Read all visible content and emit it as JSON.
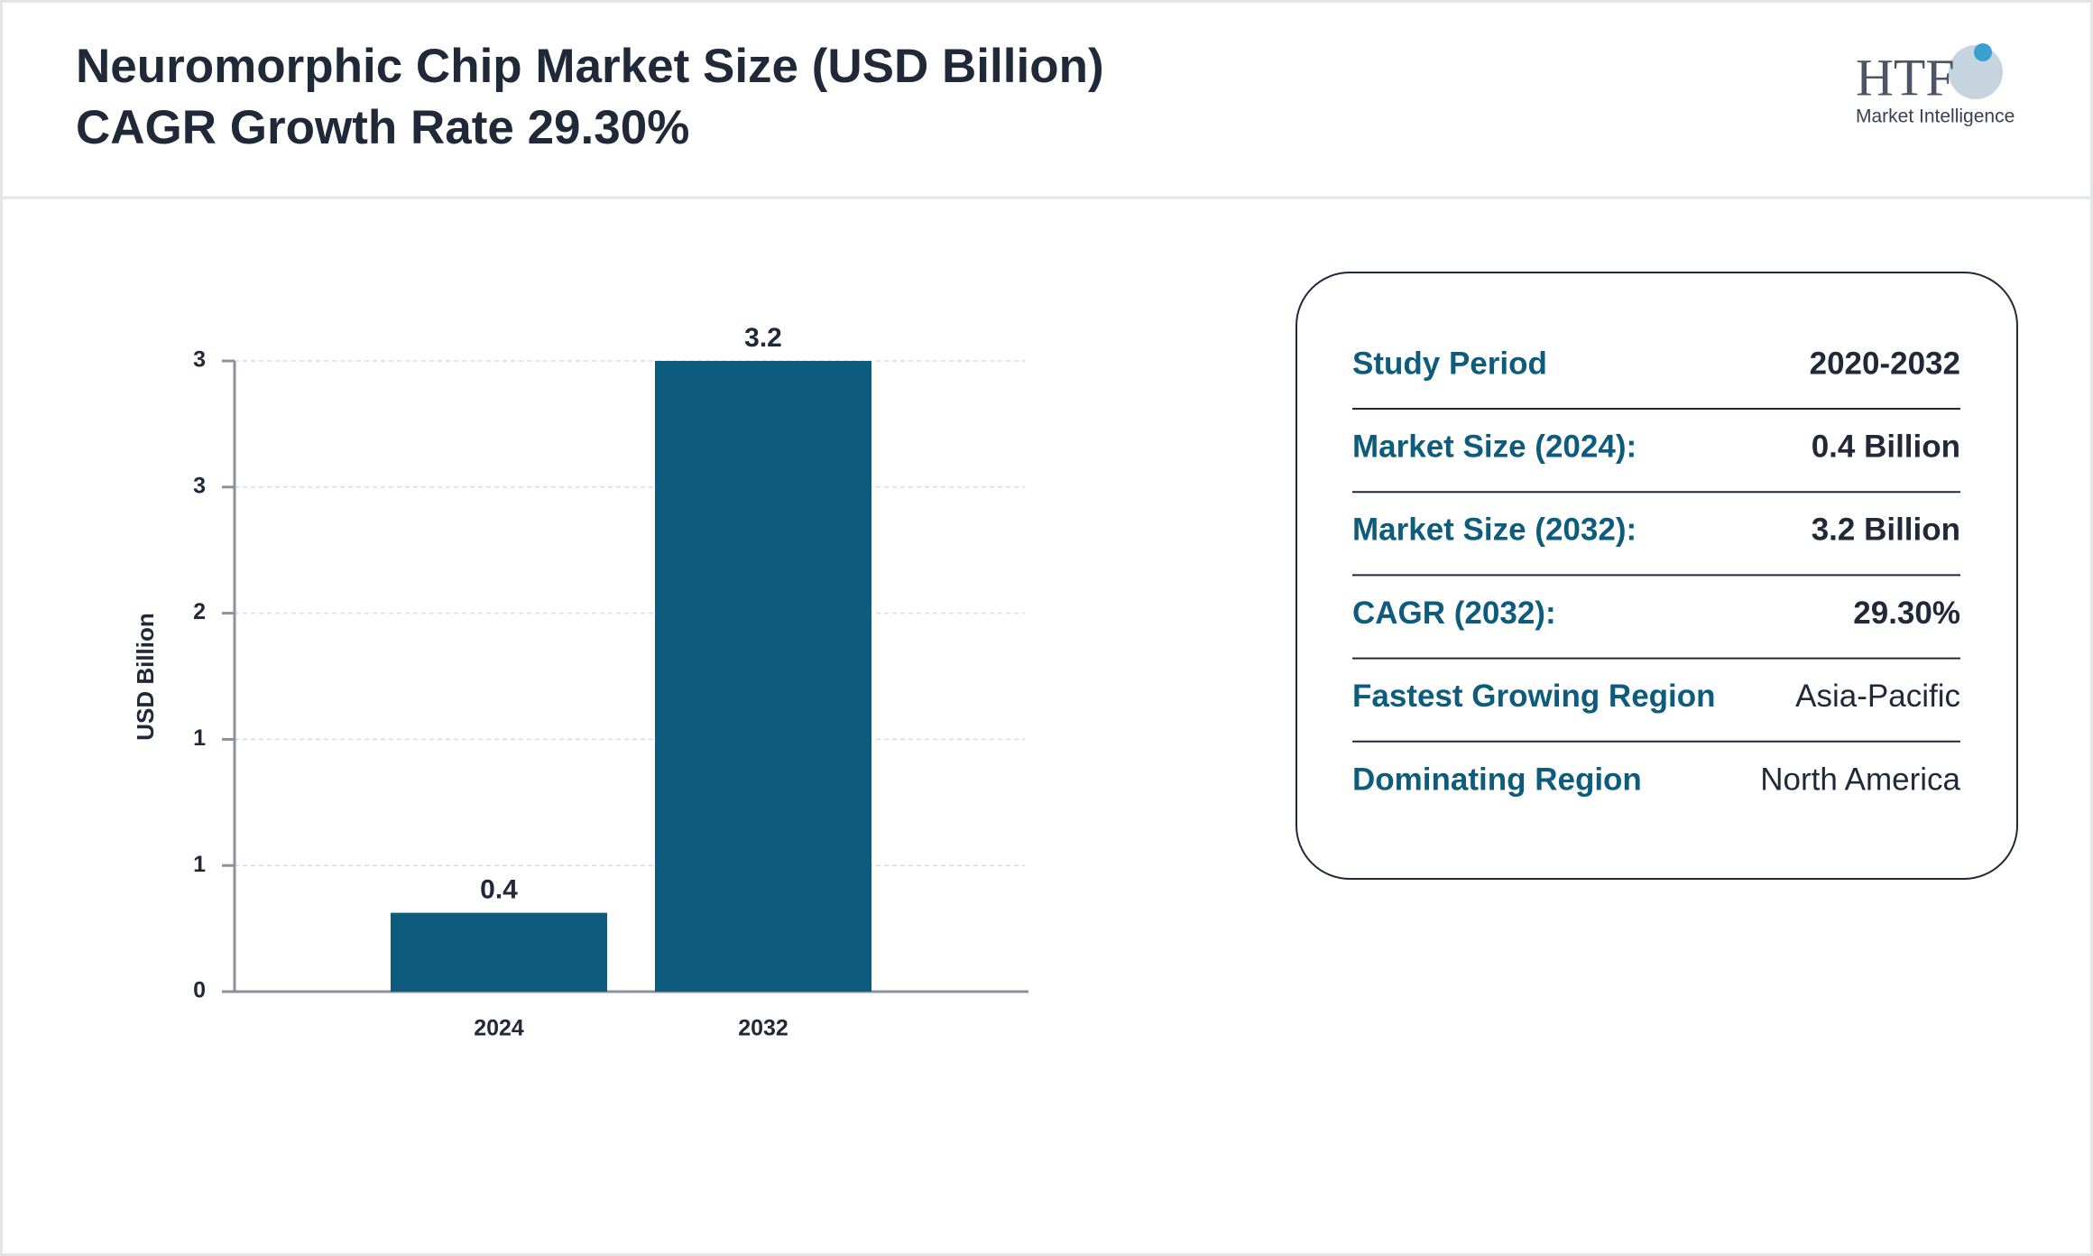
{
  "chart_data": {
    "type": "bar",
    "title": "Neuromorphic Chip Market Size (USD Billion)",
    "subtitle": "CAGR Growth Rate 29.30%",
    "ylabel": "USD Billion",
    "categories": [
      "2024",
      "2032"
    ],
    "values": [
      0.4,
      3.2
    ],
    "color": "#0d5c7d",
    "ylim": [
      0,
      3.2
    ],
    "yticks": [
      0,
      {
        "value": 0.64,
        "label": "1"
      },
      {
        "value": 1.28,
        "label": "1"
      },
      {
        "value": 1.92,
        "label": "2"
      },
      {
        "value": 2.56,
        "label": "3"
      },
      {
        "value": 3.2,
        "label": "3"
      }
    ],
    "grid": true
  },
  "info_table": {
    "rows": [
      [
        "Study Period",
        "2020-2032"
      ],
      [
        "Market Size (2024):",
        "0.4 Billion"
      ],
      [
        "Market Size (2032):",
        "3.2 Billion"
      ],
      [
        "CAGR (2032):",
        "29.30%"
      ],
      [
        "Fastest Growing Region",
        "Asia-Pacific"
      ],
      [
        "Dominating Region",
        "North America"
      ]
    ]
  },
  "logo": {
    "brand": "HTF",
    "tagline": "Market Intelligence"
  }
}
